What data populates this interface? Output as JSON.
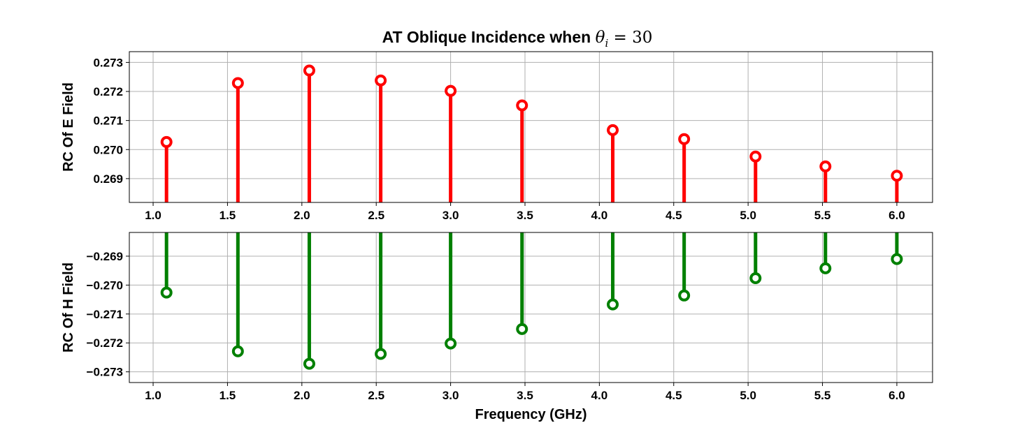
{
  "chart_data": [
    {
      "type": "stem",
      "title": "AT Oblique Incidence when θ_i = 30",
      "title_parts": {
        "prefix": "AT Oblique Incidence when",
        "symbol": "θ",
        "subscript": "i",
        "suffix": " = 30"
      },
      "xlabel": "",
      "ylabel": "RC Of E Field",
      "color": "#ff0000",
      "xlim": [
        0.84,
        6.24
      ],
      "ylim": [
        0.26818,
        0.27337
      ],
      "xticks": [
        "1.0",
        "1.5",
        "2.0",
        "2.5",
        "3.0",
        "3.5",
        "4.0",
        "4.5",
        "5.0",
        "5.5",
        "6.0"
      ],
      "yticks": [
        "0.269",
        "0.270",
        "0.271",
        "0.272",
        "0.273"
      ],
      "grid": true,
      "x": [
        1.09,
        1.57,
        2.05,
        2.53,
        3.0,
        3.48,
        4.09,
        4.57,
        5.05,
        5.52,
        6.0
      ],
      "y": [
        0.27026,
        0.27229,
        0.27272,
        0.27238,
        0.27202,
        0.27152,
        0.27067,
        0.27036,
        0.26976,
        0.26942,
        0.2691
      ]
    },
    {
      "type": "stem",
      "xlabel": "Frequency (GHz)",
      "ylabel": "RC Of H Field",
      "color": "#008000",
      "xlim": [
        0.84,
        6.24
      ],
      "ylim": [
        -0.27337,
        -0.26818
      ],
      "xticks": [
        "1.0",
        "1.5",
        "2.0",
        "2.5",
        "3.0",
        "3.5",
        "4.0",
        "4.5",
        "5.0",
        "5.5",
        "6.0"
      ],
      "yticks": [
        "−0.269",
        "−0.270",
        "−0.271",
        "−0.272",
        "−0.273"
      ],
      "grid": true,
      "x": [
        1.09,
        1.57,
        2.05,
        2.53,
        3.0,
        3.48,
        4.09,
        4.57,
        5.05,
        5.52,
        6.0
      ],
      "y": [
        -0.27026,
        -0.27229,
        -0.27272,
        -0.27238,
        -0.27202,
        -0.27152,
        -0.27067,
        -0.27036,
        -0.26976,
        -0.26942,
        -0.2691
      ]
    }
  ]
}
